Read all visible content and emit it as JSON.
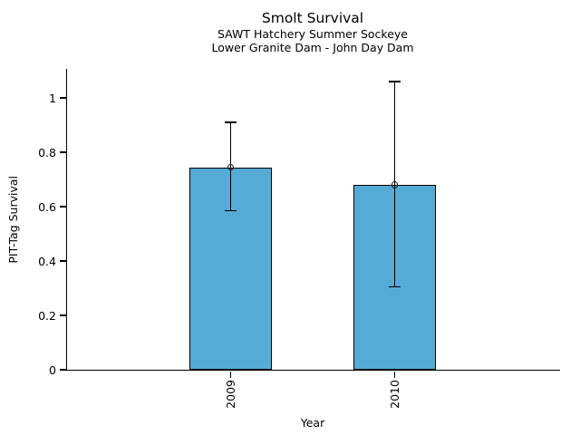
{
  "chart_data": {
    "type": "bar",
    "title": "Smolt Survival",
    "subtitle1": "SAWT Hatchery Summer Sockeye",
    "subtitle2": "Lower Granite Dam - John Day Dam",
    "xlabel": "Year",
    "ylabel": "PIT-Tag Survival",
    "categories": [
      "2009",
      "2010"
    ],
    "values": [
      0.745,
      0.68
    ],
    "error_low": [
      0.585,
      0.305
    ],
    "error_high": [
      0.91,
      1.06
    ],
    "ytick_values": [
      0,
      0.2,
      0.4,
      0.6,
      0.8,
      1
    ],
    "ytick_labels": [
      "0",
      "0.2",
      "0.4",
      "0.6",
      "0.8",
      "1"
    ],
    "ylim": [
      0,
      1.11
    ],
    "bar_color": "#56ABD6",
    "bar_edge_color": "#000000",
    "error_bar_color": "#000000",
    "axis_color": "#000000",
    "marker": "open-circle",
    "grid": false,
    "legend": false
  }
}
